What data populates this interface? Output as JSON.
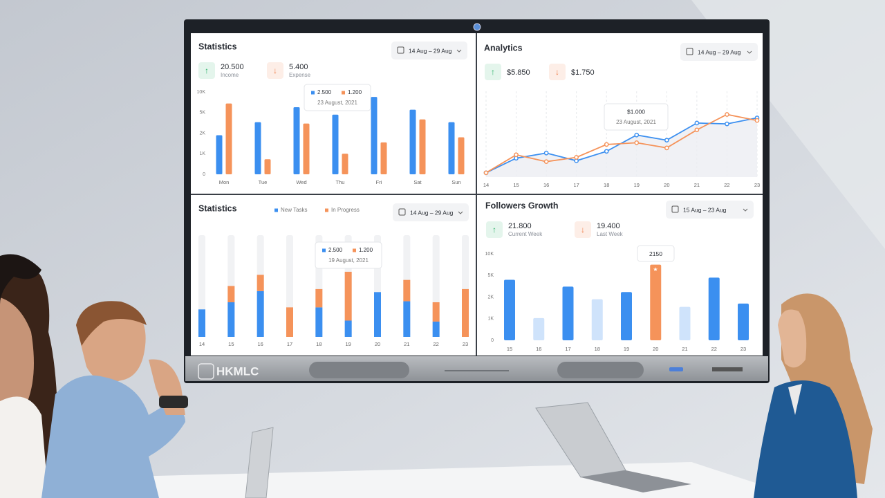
{
  "device": {
    "brand": "HKMLC"
  },
  "chart_data": [
    {
      "type": "bar",
      "title": "Statistics",
      "date_range": "14 Aug – 29 Aug",
      "stats": [
        {
          "icon": "↑",
          "value": "20.500",
          "label": "Income",
          "color": "#2fb36b"
        },
        {
          "icon": "↓",
          "value": "5.400",
          "label": "Expense",
          "color": "#f07a45"
        }
      ],
      "categories": [
        "Mon",
        "Tue",
        "Wed",
        "Thu",
        "Fri",
        "Sat",
        "Sun"
      ],
      "series": [
        {
          "color": "#3b8ff0",
          "values": [
            1900,
            3600,
            6300,
            4700,
            8800,
            5700,
            3600
          ]
        },
        {
          "color": "#f5935a",
          "values": [
            7200,
            730,
            3400,
            1000,
            1550,
            4000,
            1800
          ]
        }
      ],
      "ylim": [
        0,
        10000
      ],
      "scale": "tick-spaced",
      "yticks": [
        0,
        {
          "value": 1000,
          "label": "1K"
        },
        {
          "value": 2000,
          "label": "2K"
        },
        {
          "value": 5000,
          "label": "5K"
        },
        {
          "value": 10000,
          "label": "10K"
        }
      ],
      "tooltip": {
        "values": [
          "2.500",
          "1.200"
        ],
        "date": "23 August, 2021"
      }
    },
    {
      "type": "line",
      "title": "Analytics",
      "date_range": "14 Aug – 29 Aug",
      "stats": [
        {
          "icon": "↑",
          "value": "$5.850",
          "color": "#2fb36b"
        },
        {
          "icon": "↓",
          "value": "$1.750",
          "color": "#f07a45"
        }
      ],
      "x": [
        14,
        15,
        16,
        17,
        18,
        19,
        20,
        21,
        22,
        23
      ],
      "xlim": [
        14,
        23
      ],
      "xticks": [
        14,
        15,
        16,
        17,
        18,
        19,
        20,
        21,
        22,
        23
      ],
      "series": [
        {
          "color": "#3b8ff0",
          "values": [
            5,
            22,
            28,
            19,
            30,
            49,
            43,
            63,
            62,
            69
          ]
        },
        {
          "color": "#f5935a",
          "values": [
            5,
            26,
            18,
            23,
            38,
            40,
            34,
            55,
            73,
            66
          ]
        }
      ],
      "ylim": [
        0,
        100
      ],
      "grid": true,
      "tooltip": {
        "values": [
          "$1.000"
        ],
        "date": "23 August, 2021"
      }
    },
    {
      "type": "stacked_bar",
      "title": "Statistics",
      "date_range": "14 Aug – 29 Aug",
      "categories": [
        "14",
        "15",
        "16",
        "17",
        "18",
        "19",
        "20",
        "21",
        "22",
        "23"
      ],
      "series": [
        {
          "name": "New Tasks",
          "color": "#3b8ff0",
          "values": [
            27,
            34,
            45,
            0,
            29,
            16,
            44,
            35,
            15,
            0
          ]
        },
        {
          "name": "In Progress",
          "color": "#f5935a",
          "values": [
            0,
            16,
            16,
            29,
            18,
            48,
            0,
            21,
            19,
            47
          ]
        }
      ],
      "ylim": [
        0,
        100
      ],
      "tooltip": {
        "values": [
          "2.500",
          "1.200"
        ],
        "date": "19 August, 2021"
      }
    },
    {
      "type": "bar",
      "title": "Followers Growth",
      "date_range": "15 Aug – 23 Aug",
      "stats": [
        {
          "icon": "↑",
          "value": "21.800",
          "label": "Current Week",
          "color": "#2fb36b"
        },
        {
          "icon": "↓",
          "value": "19.400",
          "label": "Last Week",
          "color": "#f07a45"
        }
      ],
      "categories": [
        "15",
        "16",
        "17",
        "18",
        "19",
        "20",
        "21",
        "22",
        "23"
      ],
      "values": [
        4400,
        1030,
        3450,
        1900,
        2700,
        7500,
        1550,
        4700,
        1700
      ],
      "colors": [
        "#3b8ff0",
        "#cfe3fb",
        "#3b8ff0",
        "#cfe3fb",
        "#3b8ff0",
        "#f5935a",
        "#cfe3fb",
        "#3b8ff0",
        "#3b8ff0"
      ],
      "ylim": [
        0,
        10000
      ],
      "scale": "tick-spaced",
      "yticks": [
        0,
        {
          "value": 1000,
          "label": "1K"
        },
        {
          "value": 2000,
          "label": "2K"
        },
        {
          "value": 5000,
          "label": "5K"
        },
        {
          "value": 10000,
          "label": "10K"
        }
      ],
      "tooltip": {
        "values": [
          "2150"
        ]
      }
    }
  ]
}
